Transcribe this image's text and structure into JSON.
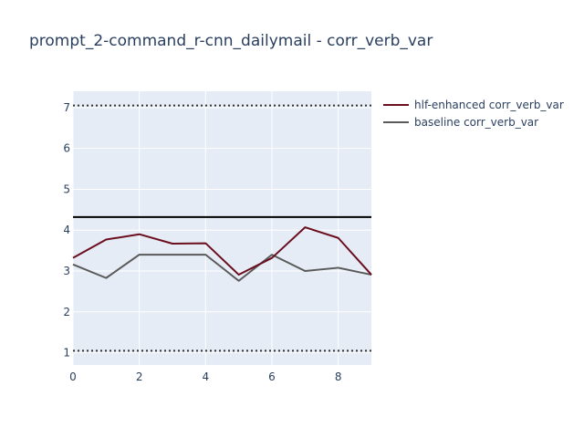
{
  "chart_data": {
    "type": "line",
    "title": "prompt_2-command_r-cnn_dailymail - corr_verb_var",
    "xlabel": "",
    "ylabel": "",
    "x": [
      0,
      1,
      2,
      3,
      4,
      5,
      6,
      7,
      8,
      9
    ],
    "xlim": [
      0,
      9
    ],
    "ylim": [
      0.7,
      7.4
    ],
    "x_ticks": [
      0,
      2,
      4,
      6,
      8
    ],
    "y_ticks": [
      1,
      2,
      3,
      4,
      5,
      6,
      7
    ],
    "grid": true,
    "legend_position": "top-right",
    "series": [
      {
        "name": "hlf-enhanced corr_verb_var",
        "color": "#6b0e1e",
        "values": [
          3.32,
          3.77,
          3.9,
          3.67,
          3.68,
          2.91,
          3.32,
          4.07,
          3.81,
          2.91
        ]
      },
      {
        "name": "baseline corr_verb_var",
        "color": "#5a5a5a",
        "values": [
          3.16,
          2.83,
          3.4,
          3.4,
          3.4,
          2.76,
          3.4,
          3.0,
          3.08,
          2.91
        ]
      }
    ],
    "reference_lines": [
      {
        "y": 7.05,
        "style": "dotted",
        "color": "#333333"
      },
      {
        "y": 4.32,
        "style": "solid",
        "color": "#000000"
      },
      {
        "y": 1.05,
        "style": "dotted",
        "color": "#333333"
      }
    ],
    "colors": {
      "plot_background": "#e5ecf6",
      "grid": "#ffffff",
      "text": "#2a3f5f"
    }
  }
}
